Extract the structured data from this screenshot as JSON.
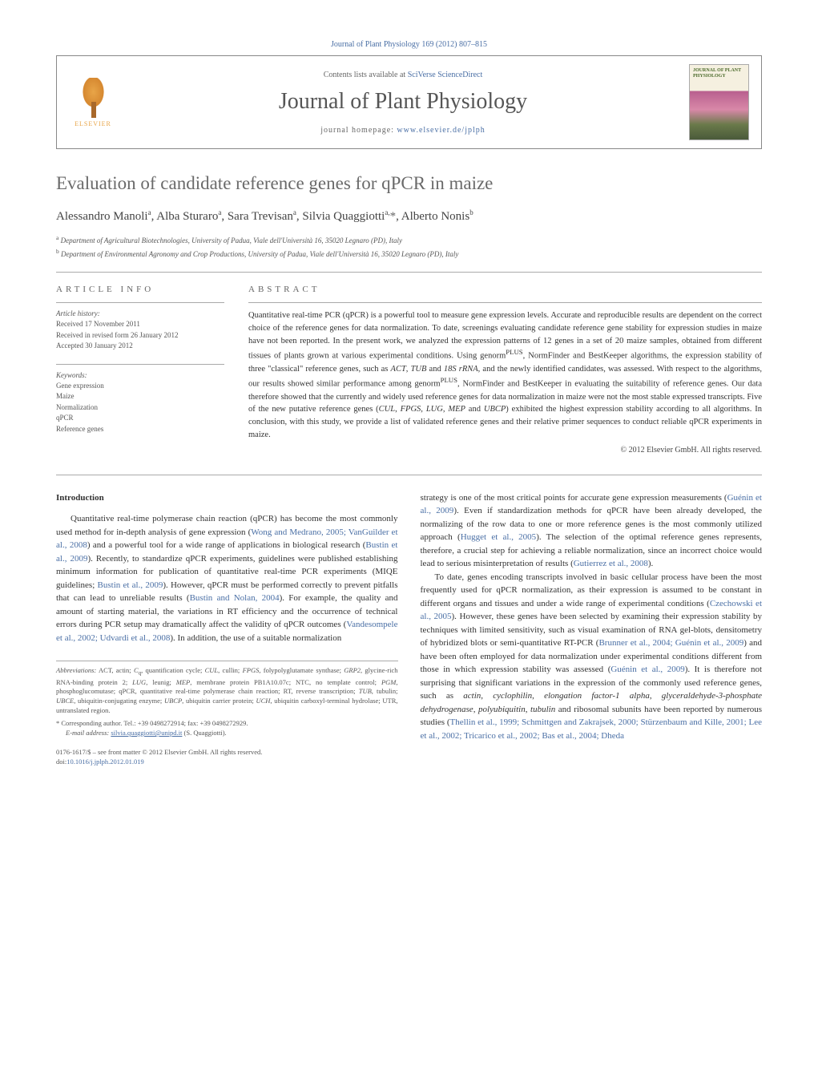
{
  "journal_ref": "Journal of Plant Physiology 169 (2012) 807–815",
  "header": {
    "contents_prefix": "Contents lists available at ",
    "contents_link": "SciVerse ScienceDirect",
    "journal_name": "Journal of Plant Physiology",
    "homepage_prefix": "journal homepage: ",
    "homepage_url": "www.elsevier.de/jplph",
    "elsevier": "ELSEVIER",
    "cover_title": "JOURNAL OF PLANT PHYSIOLOGY"
  },
  "title": "Evaluation of candidate reference genes for qPCR in maize",
  "authors_html": "Alessandro Manoli<sup>a</sup>, Alba Sturaro<sup>a</sup>, Sara Trevisan<sup>a</sup>, Silvia Quaggiotti<sup>a,</sup><span class='star'>*</span>, Alberto Nonis<sup>b</sup>",
  "affiliations": [
    {
      "sup": "a",
      "text": "Department of Agricultural Biotechnologies, University of Padua, Viale dell'Università 16, 35020 Legnaro (PD), Italy"
    },
    {
      "sup": "b",
      "text": "Department of Environmental Agronomy and Crop Productions, University of Padua, Viale dell'Università 16, 35020 Legnaro (PD), Italy"
    }
  ],
  "article_info": {
    "heading": "article info",
    "history_label": "Article history:",
    "history": [
      "Received 17 November 2011",
      "Received in revised form 26 January 2012",
      "Accepted 30 January 2012"
    ],
    "keywords_label": "Keywords:",
    "keywords": [
      "Gene expression",
      "Maize",
      "Normalization",
      "qPCR",
      "Reference genes"
    ]
  },
  "abstract": {
    "heading": "abstract",
    "text": "Quantitative real-time PCR (qPCR) is a powerful tool to measure gene expression levels. Accurate and reproducible results are dependent on the correct choice of the reference genes for data normalization. To date, screenings evaluating candidate reference gene stability for expression studies in maize have not been reported. In the present work, we analyzed the expression patterns of 12 genes in a set of 20 maize samples, obtained from different tissues of plants grown at various experimental conditions. Using genorm<sup>PLUS</sup>, NormFinder and BestKeeper algorithms, the expression stability of three \"classical\" reference genes, such as <i>ACT</i>, <i>TUB</i> and <i>18S rRNA</i>, and the newly identified candidates, was assessed. With respect to the algorithms, our results showed similar performance among genorm<sup>PLUS</sup>, NormFinder and BestKeeper in evaluating the suitability of reference genes. Our data therefore showed that the currently and widely used reference genes for data normalization in maize were not the most stable expressed transcripts. Five of the new putative reference genes (<i>CUL</i>, <i>FPGS</i>, <i>LUG</i>, <i>MEP</i> and <i>UBCP</i>) exhibited the highest expression stability according to all algorithms. In conclusion, with this study, we provide a list of validated reference genes and their relative primer sequences to conduct reliable qPCR experiments in maize.",
    "copyright": "© 2012 Elsevier GmbH. All rights reserved."
  },
  "body": {
    "intro_heading": "Introduction",
    "col1_p1": "Quantitative real-time polymerase chain reaction (qPCR) has become the most commonly used method for in-depth analysis of gene expression (<span class='ref'>Wong and Medrano, 2005; VanGuilder et al., 2008</span>) and a powerful tool for a wide range of applications in biological research (<span class='ref'>Bustin et al., 2009</span>). Recently, to standardize qPCR experiments, guidelines were published establishing minimum information for publication of quantitative real-time PCR experiments (MIQE guidelines; <span class='ref'>Bustin et al., 2009</span>). However, qPCR must be performed correctly to prevent pitfalls that can lead to unreliable results (<span class='ref'>Bustin and Nolan, 2004</span>). For example, the quality and amount of starting material, the variations in RT efficiency and the occurrence of technical errors during PCR setup may dramatically affect the validity of qPCR outcomes (<span class='ref'>Vandesompele et al., 2002; Udvardi et al., 2008</span>). In addition, the use of a suitable normalization",
    "col2_p1": "strategy is one of the most critical points for accurate gene expression measurements (<span class='ref'>Guénin et al., 2009</span>). Even if standardization methods for qPCR have been already developed, the normalizing of the row data to one or more reference genes is the most commonly utilized approach (<span class='ref'>Hugget et al., 2005</span>). The selection of the optimal reference genes represents, therefore, a crucial step for achieving a reliable normalization, since an incorrect choice would lead to serious misinterpretation of results (<span class='ref'>Gutierrez et al., 2008</span>).",
    "col2_p2": "To date, genes encoding transcripts involved in basic cellular process have been the most frequently used for qPCR normalization, as their expression is assumed to be constant in different organs and tissues and under a wide range of experimental conditions (<span class='ref'>Czechowski et al., 2005</span>). However, these genes have been selected by examining their expression stability by techniques with limited sensitivity, such as visual examination of RNA gel-blots, densitometry of hybridized blots or semi-quantitative RT-PCR (<span class='ref'>Brunner et al., 2004; Guénin et al., 2009</span>) and have been often employed for data normalization under experimental conditions different from those in which expression stability was assessed (<span class='ref'>Guénin et al., 2009</span>). It is therefore not surprising that significant variations in the expression of the commonly used reference genes, such as <i>actin</i>, <i>cyclophilin</i>, <i>elongation factor-1 alpha</i>, <i>glyceraldehyde-3-phosphate dehydrogenase</i>, <i>polyubiquitin</i>, <i>tubulin</i> and ribosomal subunits have been reported by numerous studies (<span class='ref'>Thellin et al., 1999; Schmittgen and Zakrajsek, 2000; Stürzenbaum and Kille, 2001; Lee et al., 2002; Tricarico et al., 2002; Bas et al., 2004; Dheda</span>"
  },
  "footnotes": {
    "abbrev_label": "Abbreviations:",
    "abbrev_text": " ACT, actin; <i>C</i><sub>q</sub>, quantification cycle; <i>CUL</i>, cullin; <i>FPGS</i>, folypolyglutamate synthase; <i>GRP2</i>, glycine-rich RNA-binding protein 2; <i>LUG</i>, leunig; <i>MEP</i>, membrane protein PB1A10.07c; NTC, no template control; <i>PGM</i>, phosphoglucomutase; qPCR, quantitative real-time polymerase chain reaction; RT, reverse transcription; <i>TUB</i>, tubulin; <i>UBCE</i>, ubiquitin-conjugating enzyme; <i>UBCP</i>, ubiquitin carrier protein; <i>UCH</i>, ubiquitin carboxyl-terminal hydrolase; UTR, untranslated region.",
    "corr_label": "* Corresponding author. Tel.: +39 0498272914; fax: +39 0498272929.",
    "email_label": "E-mail address:",
    "email": "silvia.quaggiotti@unipd.it",
    "email_suffix": " (S. Quaggiotti)."
  },
  "footer": {
    "issn_line": "0176-1617/$ – see front matter © 2012 Elsevier GmbH. All rights reserved.",
    "doi_prefix": "doi:",
    "doi": "10.1016/j.jplph.2012.01.019"
  },
  "colors": {
    "link": "#4a6fa5",
    "text": "#333333",
    "muted": "#666666",
    "border": "#aaaaaa",
    "elsevier": "#e8a548"
  }
}
